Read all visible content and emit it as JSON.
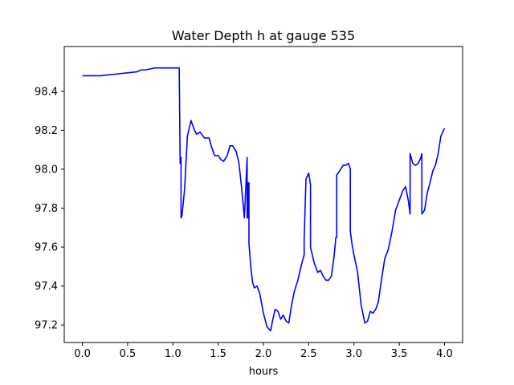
{
  "chart_data": {
    "type": "line",
    "title": "Water Depth h at gauge 535",
    "xlabel": "hours",
    "ylabel": "",
    "xlim": [
      -0.2,
      4.2
    ],
    "ylim": [
      97.11,
      98.63
    ],
    "xticks": [
      0.0,
      0.5,
      1.0,
      1.5,
      2.0,
      2.5,
      3.0,
      3.5,
      4.0
    ],
    "xtick_labels": [
      "0.0",
      "0.5",
      "1.0",
      "1.5",
      "2.0",
      "2.5",
      "3.0",
      "3.5",
      "4.0"
    ],
    "yticks": [
      97.2,
      97.4,
      97.6,
      97.8,
      98.0,
      98.2,
      98.4
    ],
    "ytick_labels": [
      "97.2",
      "97.4",
      "97.6",
      "97.8",
      "98.0",
      "98.2",
      "98.4"
    ],
    "grid": false,
    "series": [
      {
        "color": "#0000ff",
        "x": [
          0.0,
          0.2,
          0.4,
          0.6,
          0.65,
          0.7,
          0.8,
          0.9,
          1.0,
          1.07,
          1.08,
          1.08,
          1.09,
          1.09,
          1.1,
          1.13,
          1.16,
          1.2,
          1.23,
          1.26,
          1.3,
          1.35,
          1.4,
          1.43,
          1.46,
          1.5,
          1.53,
          1.56,
          1.6,
          1.63,
          1.66,
          1.7,
          1.73,
          1.76,
          1.79,
          1.82,
          1.82,
          1.83,
          1.83,
          1.84,
          1.84,
          1.86,
          1.88,
          1.9,
          1.93,
          1.96,
          2.0,
          2.04,
          2.08,
          2.1,
          2.13,
          2.16,
          2.19,
          2.22,
          2.25,
          2.28,
          2.31,
          2.34,
          2.38,
          2.42,
          2.45,
          2.45,
          2.47,
          2.5,
          2.52,
          2.52,
          2.56,
          2.6,
          2.63,
          2.66,
          2.69,
          2.72,
          2.75,
          2.78,
          2.8,
          2.81,
          2.81,
          2.84,
          2.88,
          2.91,
          2.94,
          2.96,
          2.96,
          2.98,
          3.0,
          3.04,
          3.08,
          3.12,
          3.15,
          3.18,
          3.21,
          3.24,
          3.27,
          3.3,
          3.34,
          3.38,
          3.42,
          3.46,
          3.5,
          3.54,
          3.57,
          3.6,
          3.62,
          3.62,
          3.65,
          3.68,
          3.71,
          3.74,
          3.75,
          3.75,
          3.78,
          3.81,
          3.84,
          3.87,
          3.9,
          3.93,
          3.96,
          4.0
        ],
        "y": [
          98.48,
          98.48,
          98.49,
          98.5,
          98.51,
          98.51,
          98.52,
          98.52,
          98.52,
          98.52,
          98.03,
          98.05,
          98.06,
          97.75,
          97.76,
          97.9,
          98.17,
          98.25,
          98.21,
          98.18,
          98.19,
          98.16,
          98.16,
          98.11,
          98.07,
          98.07,
          98.05,
          98.04,
          98.07,
          98.12,
          98.12,
          98.09,
          98.03,
          97.9,
          97.75,
          98.06,
          97.75,
          97.75,
          97.93,
          97.93,
          97.62,
          97.5,
          97.42,
          97.39,
          97.4,
          97.36,
          97.26,
          97.19,
          97.17,
          97.22,
          97.28,
          97.27,
          97.23,
          97.25,
          97.22,
          97.21,
          97.3,
          97.37,
          97.43,
          97.51,
          97.56,
          97.64,
          97.95,
          97.98,
          97.92,
          97.6,
          97.52,
          97.47,
          97.48,
          97.45,
          97.43,
          97.43,
          97.45,
          97.55,
          97.65,
          97.65,
          97.97,
          97.99,
          98.02,
          98.02,
          98.03,
          98.0,
          97.68,
          97.61,
          97.56,
          97.47,
          97.3,
          97.21,
          97.22,
          97.27,
          97.26,
          97.28,
          97.32,
          97.42,
          97.54,
          97.59,
          97.68,
          97.79,
          97.84,
          97.89,
          97.91,
          97.84,
          97.77,
          98.08,
          98.03,
          98.02,
          98.03,
          98.06,
          98.08,
          97.77,
          97.79,
          97.88,
          97.93,
          97.99,
          98.02,
          98.08,
          98.17,
          98.21
        ]
      }
    ]
  }
}
